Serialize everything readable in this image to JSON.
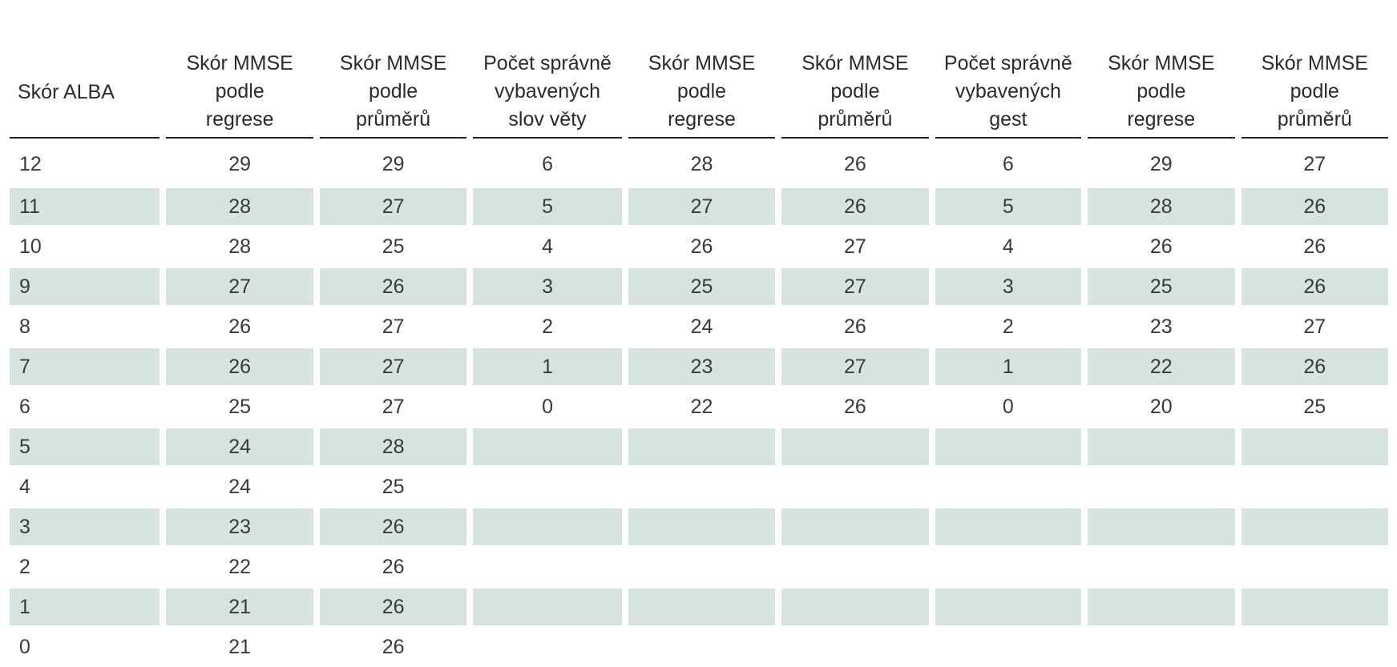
{
  "table": {
    "headers": [
      "Skór ALBA",
      "Skór MMSE podle regrese",
      "Skór MMSE podle průměrů",
      "Počet správně vybavených slov věty",
      "Skór MMSE podle regrese",
      "Skór MMSE podle průměrů",
      "Počet správně vybavených gest",
      "Skór MMSE podle regrese",
      "Skór MMSE podle průměrů"
    ],
    "header_lines": [
      [
        "Skór ALBA"
      ],
      [
        "Skór MMSE",
        "podle",
        "regrese"
      ],
      [
        "Skór MMSE",
        "podle",
        "průměrů"
      ],
      [
        "Počet správně",
        "vybavených",
        "slov věty"
      ],
      [
        "Skór MMSE",
        "podle",
        "regrese"
      ],
      [
        "Skór MMSE",
        "podle",
        "průměrů"
      ],
      [
        "Počet správně",
        "vybavených",
        "gest"
      ],
      [
        "Skór MMSE",
        "podle",
        "regrese"
      ],
      [
        "Skór MMSE",
        "podle",
        "průměrů"
      ]
    ],
    "rows": [
      [
        "12",
        "29",
        "29",
        "6",
        "28",
        "26",
        "6",
        "29",
        "27"
      ],
      [
        "11",
        "28",
        "27",
        "5",
        "27",
        "26",
        "5",
        "28",
        "26"
      ],
      [
        "10",
        "28",
        "25",
        "4",
        "26",
        "27",
        "4",
        "26",
        "26"
      ],
      [
        "9",
        "27",
        "26",
        "3",
        "25",
        "27",
        "3",
        "25",
        "26"
      ],
      [
        "8",
        "26",
        "27",
        "2",
        "24",
        "26",
        "2",
        "23",
        "27"
      ],
      [
        "7",
        "26",
        "27",
        "1",
        "23",
        "27",
        "1",
        "22",
        "26"
      ],
      [
        "6",
        "25",
        "27",
        "0",
        "22",
        "26",
        "0",
        "20",
        "25"
      ],
      [
        "5",
        "24",
        "28",
        "",
        "",
        "",
        "",
        "",
        ""
      ],
      [
        "4",
        "24",
        "25",
        "",
        "",
        "",
        "",
        "",
        ""
      ],
      [
        "3",
        "23",
        "26",
        "",
        "",
        "",
        "",
        "",
        ""
      ],
      [
        "2",
        "22",
        "26",
        "",
        "",
        "",
        "",
        "",
        ""
      ],
      [
        "1",
        "21",
        "26",
        "",
        "",
        "",
        "",
        "",
        ""
      ],
      [
        "0",
        "21",
        "26",
        "",
        "",
        "",
        "",
        "",
        ""
      ]
    ],
    "stripe_color": "#d6e4e1"
  }
}
